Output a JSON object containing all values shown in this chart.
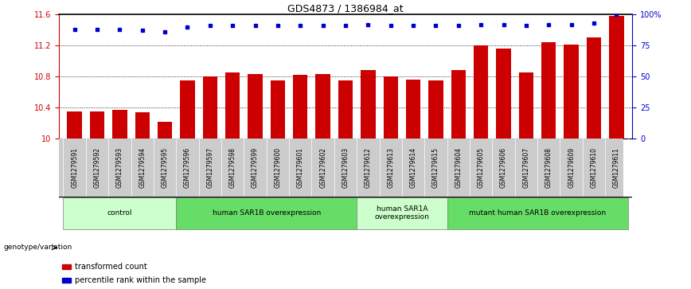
{
  "title": "GDS4873 / 1386984_at",
  "samples": [
    "GSM1279591",
    "GSM1279592",
    "GSM1279593",
    "GSM1279594",
    "GSM1279595",
    "GSM1279596",
    "GSM1279597",
    "GSM1279598",
    "GSM1279599",
    "GSM1279600",
    "GSM1279601",
    "GSM1279602",
    "GSM1279603",
    "GSM1279612",
    "GSM1279613",
    "GSM1279614",
    "GSM1279615",
    "GSM1279604",
    "GSM1279605",
    "GSM1279606",
    "GSM1279607",
    "GSM1279608",
    "GSM1279609",
    "GSM1279610",
    "GSM1279611"
  ],
  "bar_values": [
    10.35,
    10.35,
    10.37,
    10.34,
    10.22,
    10.75,
    10.8,
    10.85,
    10.83,
    10.75,
    10.82,
    10.83,
    10.75,
    10.88,
    10.8,
    10.76,
    10.75,
    10.88,
    11.2,
    11.16,
    10.85,
    11.24,
    11.21,
    11.3,
    11.58
  ],
  "percentile_values": [
    88,
    88,
    88,
    87,
    86,
    90,
    91,
    91,
    91,
    91,
    91,
    91,
    91,
    92,
    91,
    91,
    91,
    91,
    92,
    92,
    91,
    92,
    92,
    93,
    100
  ],
  "bar_color": "#cc0000",
  "dot_color": "#0000cc",
  "ylim_left": [
    10.0,
    11.6
  ],
  "ylim_right": [
    0,
    100
  ],
  "yticks_left": [
    10.0,
    10.4,
    10.8,
    11.2,
    11.6
  ],
  "ytick_labels_left": [
    "10",
    "10.4",
    "10.8",
    "11.2",
    "11.6"
  ],
  "yticks_right": [
    0,
    25,
    50,
    75,
    100
  ],
  "ytick_labels_right": [
    "0",
    "25",
    "50",
    "75",
    "100%"
  ],
  "grid_lines": [
    10.4,
    10.8,
    11.2
  ],
  "groups": [
    {
      "label": "control",
      "start": 0,
      "end": 4,
      "color": "#ccffcc",
      "darker": false
    },
    {
      "label": "human SAR1B overexpression",
      "start": 5,
      "end": 12,
      "color": "#66dd66",
      "darker": true
    },
    {
      "label": "human SAR1A\noverexpression",
      "start": 13,
      "end": 16,
      "color": "#ccffcc",
      "darker": false
    },
    {
      "label": "mutant human SAR1B overexpression",
      "start": 17,
      "end": 24,
      "color": "#66dd66",
      "darker": true
    }
  ],
  "genotype_label": "genotype/variation",
  "legend_red_label": "transformed count",
  "legend_blue_label": "percentile rank within the sample",
  "xtick_bg_color": "#cccccc",
  "top_border_color": "#000000"
}
